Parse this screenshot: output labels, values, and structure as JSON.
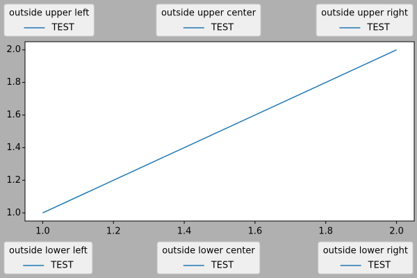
{
  "chart_data": {
    "type": "line",
    "x": [
      1,
      2
    ],
    "series": [
      {
        "name": "TEST",
        "color": "#1f77b4",
        "values": [
          1,
          2
        ]
      }
    ],
    "xlim": [
      0.95,
      2.05
    ],
    "ylim": [
      0.95,
      2.05
    ],
    "xticks": [
      {
        "value": 1,
        "label": "1.0"
      },
      {
        "value": 1.2,
        "label": "1.2"
      },
      {
        "value": 1.4,
        "label": "1.4"
      },
      {
        "value": 1.6,
        "label": "1.6"
      },
      {
        "value": 1.8,
        "label": "1.8"
      },
      {
        "value": 2,
        "label": "2.0"
      }
    ],
    "yticks": [
      {
        "value": 1,
        "label": "1.0"
      },
      {
        "value": 1.2,
        "label": "1.2"
      },
      {
        "value": 1.4,
        "label": "1.4"
      },
      {
        "value": 1.6,
        "label": "1.6"
      },
      {
        "value": 1.8,
        "label": "1.8"
      },
      {
        "value": 2,
        "label": "2.0"
      }
    ],
    "grid": false,
    "legends": [
      {
        "title": "outside upper left",
        "corner": "upper left"
      },
      {
        "title": "outside upper center",
        "corner": "upper center"
      },
      {
        "title": "outside upper right",
        "corner": "upper right"
      },
      {
        "title": "outside lower left",
        "corner": "lower left"
      },
      {
        "title": "outside lower center",
        "corner": "lower center"
      },
      {
        "title": "outside lower right",
        "corner": "lower right"
      }
    ]
  }
}
